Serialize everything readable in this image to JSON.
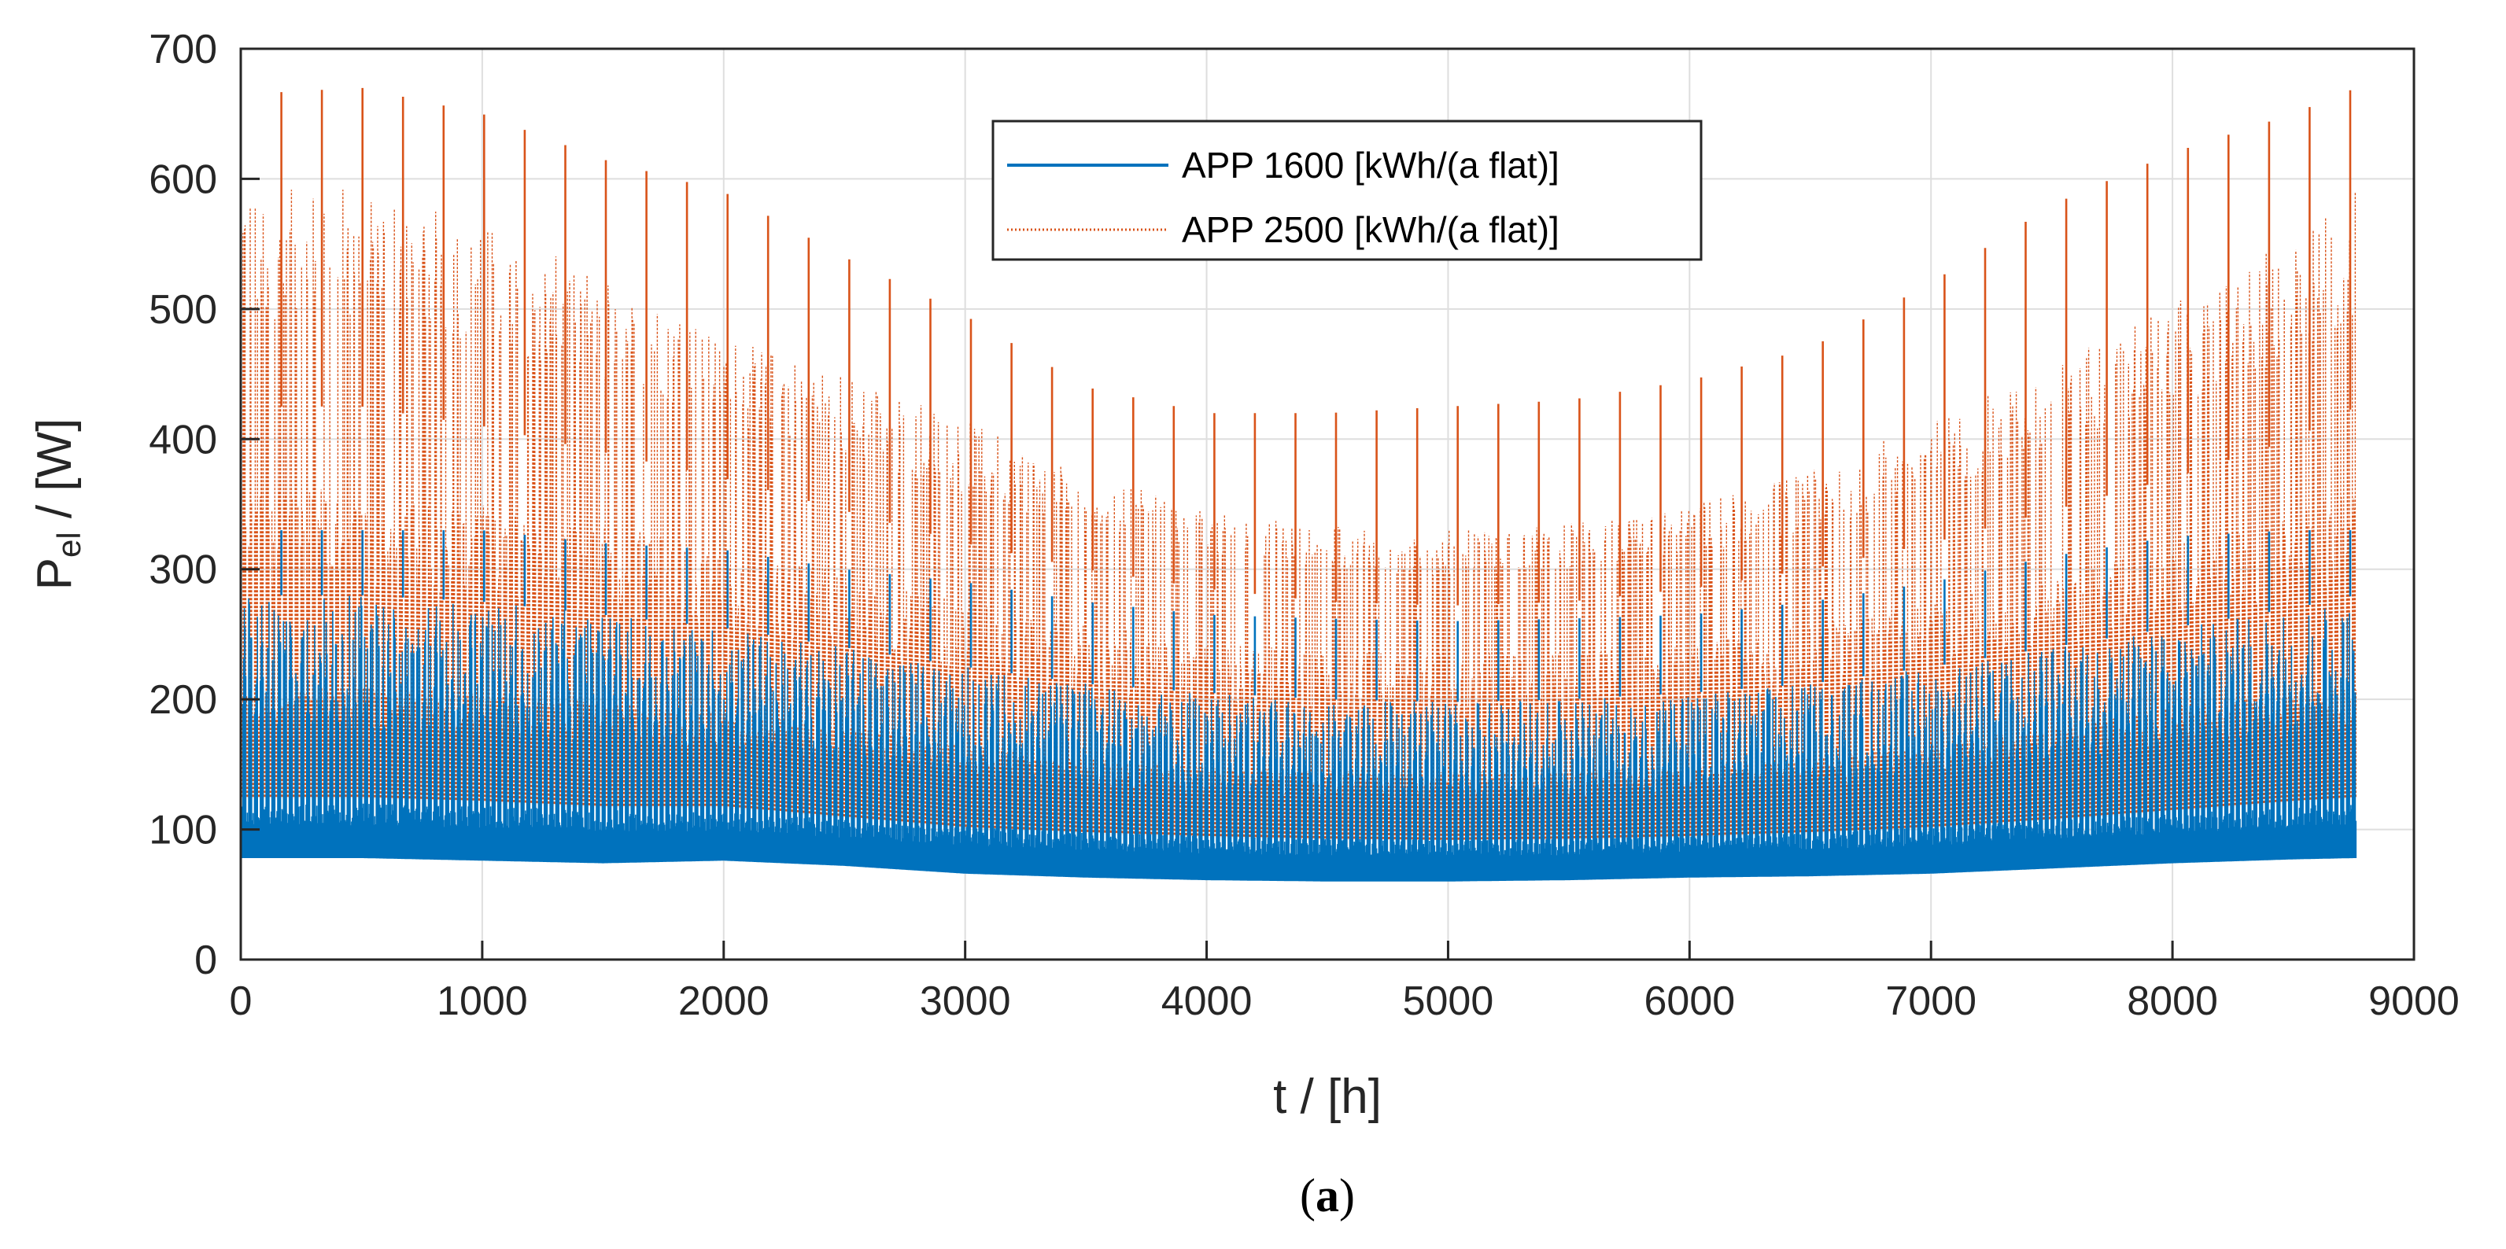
{
  "chart_data": {
    "type": "line",
    "title": "",
    "xlabel": "t / [h]",
    "ylabel_main": "P",
    "ylabel_sub": "el",
    "ylabel_rest": " / [W]",
    "xlim": [
      0,
      9000
    ],
    "ylim": [
      0,
      700
    ],
    "xticks": [
      0,
      1000,
      2000,
      3000,
      4000,
      5000,
      6000,
      7000,
      8000,
      9000
    ],
    "yticks": [
      0,
      100,
      200,
      300,
      400,
      500,
      600,
      700
    ],
    "grid": true,
    "legend_position": "top-center",
    "caption_open": "(",
    "caption_letter": "a",
    "caption_close": ")",
    "series": [
      {
        "name": "APP 1600 [kWh/(a flat)]",
        "color": "#0072BD",
        "linestyle": "solid",
        "envelope_x": [
          0,
          500,
          1000,
          1500,
          2000,
          2500,
          3000,
          3500,
          4000,
          4500,
          5000,
          5500,
          6000,
          6500,
          7000,
          7500,
          8000,
          8500,
          8760
        ],
        "base_min": [
          78,
          78,
          76,
          74,
          76,
          72,
          66,
          63,
          61,
          60,
          60,
          61,
          63,
          64,
          66,
          70,
          74,
          77,
          78
        ],
        "base_top": [
          120,
          120,
          118,
          115,
          114,
          108,
          102,
          98,
          95,
          93,
          92,
          93,
          95,
          98,
          102,
          107,
          112,
          118,
          120
        ],
        "band_top": [
          280,
          280,
          275,
          265,
          255,
          240,
          225,
          212,
          205,
          200,
          198,
          200,
          205,
          212,
          225,
          240,
          255,
          270,
          280
        ],
        "peak_max": [
          330,
          330,
          330,
          320,
          315,
          300,
          290,
          275,
          265,
          262,
          260,
          262,
          265,
          275,
          290,
          310,
          325,
          330,
          330
        ]
      },
      {
        "name": "APP 2500 [kWh/(a flat)]",
        "color": "#D95319",
        "linestyle": "dotted",
        "envelope_x": [
          0,
          500,
          1000,
          1500,
          2000,
          2500,
          3000,
          3500,
          4000,
          4500,
          5000,
          5500,
          6000,
          6500,
          7000,
          7500,
          8000,
          8500,
          8760
        ],
        "base_min": [
          125,
          125,
          122,
          118,
          118,
          110,
          102,
          98,
          95,
          93,
          92,
          93,
          95,
          98,
          102,
          108,
          115,
          122,
          125
        ],
        "base_top": [
          210,
          210,
          205,
          198,
          190,
          180,
          165,
          155,
          148,
          145,
          144,
          145,
          148,
          155,
          165,
          180,
          195,
          205,
          210
        ],
        "band_top": [
          425,
          425,
          410,
          390,
          370,
          345,
          320,
          300,
          285,
          275,
          272,
          275,
          285,
          300,
          320,
          345,
          370,
          400,
          425
        ],
        "tall_top": [
          590,
          595,
          565,
          525,
          480,
          450,
          415,
          375,
          345,
          335,
          330,
          335,
          350,
          375,
          415,
          455,
          505,
          555,
          595
        ],
        "peak_max": [
          665,
          670,
          650,
          615,
          590,
          540,
          495,
          440,
          420,
          420,
          425,
          430,
          445,
          470,
          520,
          580,
          620,
          650,
          670
        ]
      }
    ]
  }
}
